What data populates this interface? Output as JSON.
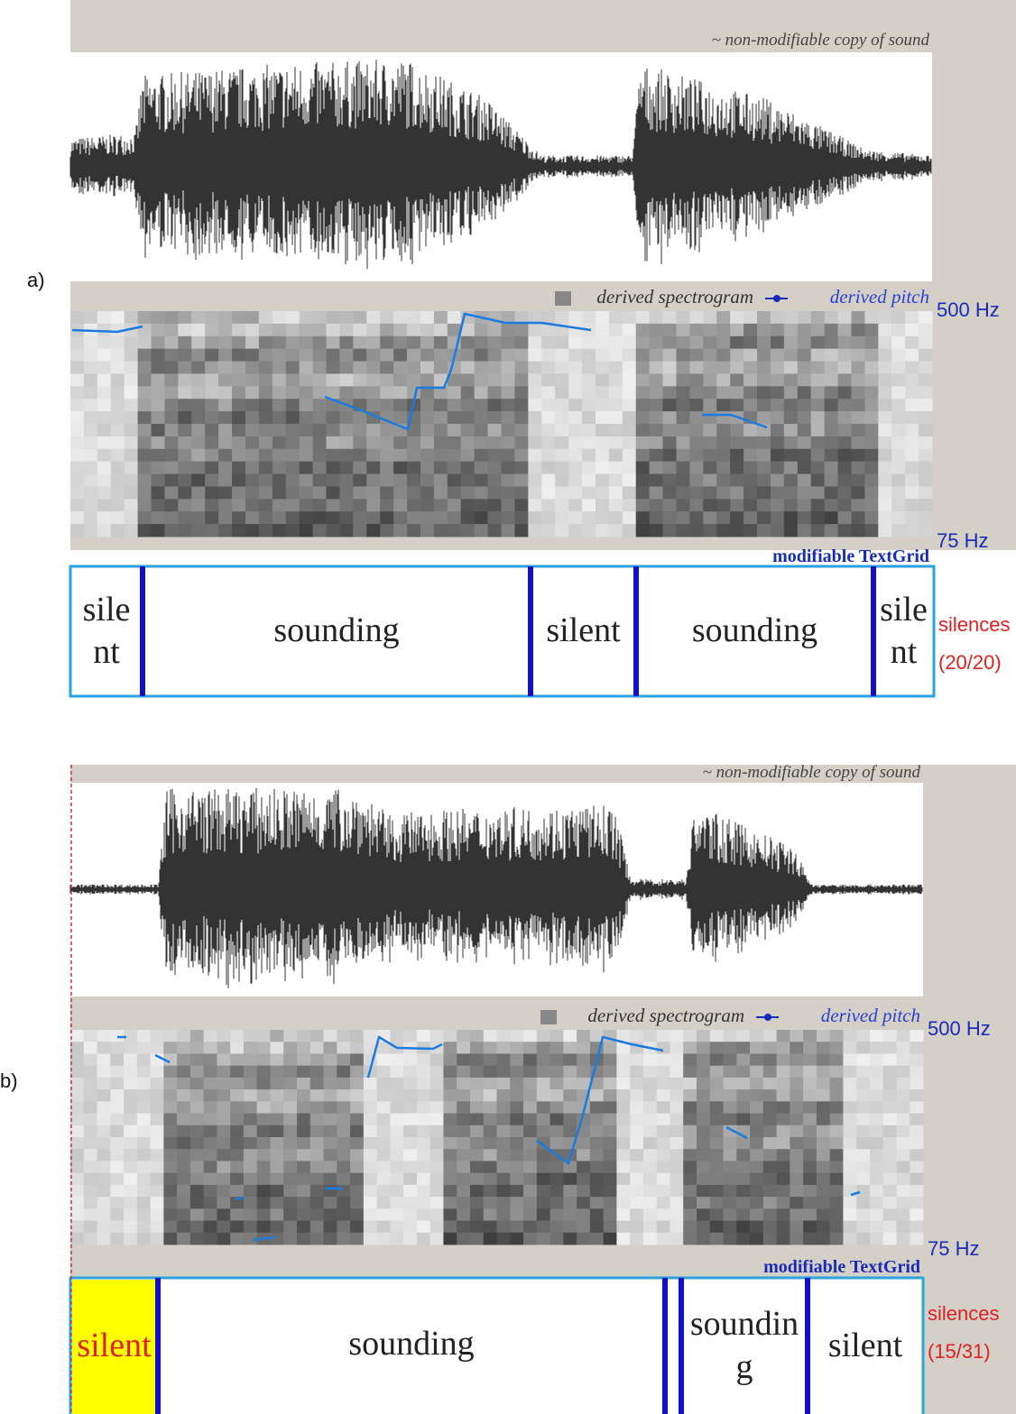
{
  "panels": [
    {
      "label": "a)",
      "sound_header": "~ non-modifiable copy of sound",
      "spectrogram_label": "derived spectrogram",
      "pitch_label": "derived pitch",
      "freq_max": "500 Hz",
      "freq_min": "75 Hz",
      "textgrid_label": "modifiable TextGrid",
      "intervals": [
        "silent",
        "sounding",
        "silent",
        "sounding",
        "silent"
      ],
      "tier_name": "silences",
      "tier_count": "(20/20)"
    },
    {
      "label": "b)",
      "sound_header": "~ non-modifiable copy of sound",
      "spectrogram_label": "derived spectrogram",
      "pitch_label": "derived pitch",
      "freq_max": "500 Hz",
      "freq_min": "75 Hz",
      "textgrid_label": "modifiable TextGrid",
      "intervals": [
        "silent",
        "sounding",
        "sounding",
        "silent"
      ],
      "tier_name": "silences",
      "tier_count": "(15/31)"
    }
  ]
}
